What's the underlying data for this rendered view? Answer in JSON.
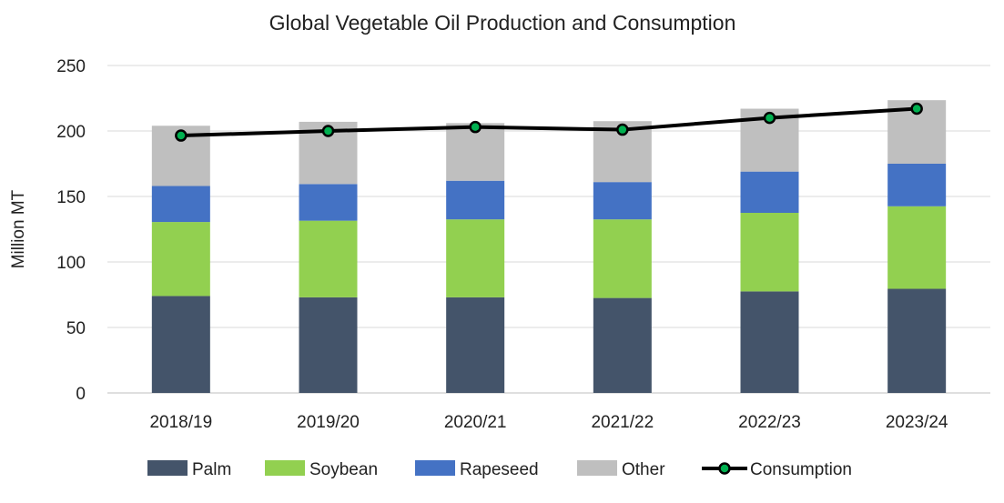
{
  "chart_data": {
    "type": "bar",
    "stacked": true,
    "title": "Global Vegetable Oil Production and Consumption",
    "xlabel": "",
    "ylabel": "Million MT",
    "ylim": [
      0,
      250
    ],
    "yticks": [
      0,
      50,
      100,
      150,
      200,
      250
    ],
    "categories": [
      "2018/19",
      "2019/20",
      "2020/21",
      "2021/22",
      "2022/23",
      "2023/24"
    ],
    "series": [
      {
        "name": "Palm",
        "kind": "bar",
        "color": "#44546a",
        "values": [
          74,
          73,
          73,
          72.5,
          77.5,
          79.5
        ]
      },
      {
        "name": "Soybean",
        "kind": "bar",
        "color": "#92d050",
        "values": [
          56.5,
          58.5,
          59.5,
          60,
          60,
          63
        ]
      },
      {
        "name": "Rapeseed",
        "kind": "bar",
        "color": "#4472c4",
        "values": [
          27.5,
          28,
          29.5,
          28.5,
          31.5,
          32.5
        ]
      },
      {
        "name": "Other",
        "kind": "bar",
        "color": "#bfbfbf",
        "values": [
          46,
          47.5,
          44,
          46.5,
          48,
          48.5
        ]
      },
      {
        "name": "Consumption",
        "kind": "line",
        "color": "#000000",
        "marker_color": "#00b050",
        "values": [
          196.5,
          200,
          203,
          201,
          210,
          217
        ]
      }
    ],
    "grid": true,
    "legend_position": "bottom"
  }
}
